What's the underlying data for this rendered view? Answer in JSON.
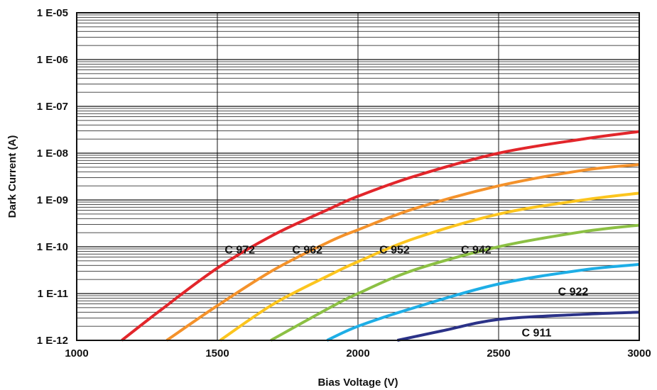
{
  "chart_data": {
    "type": "line",
    "xlabel": "Bias Voltage (V)",
    "ylabel": "Dark Current (A)",
    "xlim": [
      1000,
      3000
    ],
    "ylim": [
      1e-12,
      1e-05
    ],
    "y_scale": "log",
    "grid": true,
    "x_ticks": [
      1000,
      1500,
      2000,
      2500,
      3000
    ],
    "x_tick_labels": [
      "1000",
      "1500",
      "2000",
      "2500",
      "3000"
    ],
    "y_ticks": [
      1e-12,
      1e-11,
      1e-10,
      1e-09,
      1e-08,
      1e-07,
      1e-06,
      1e-05
    ],
    "y_tick_labels": [
      "1 E-12",
      "1 E-11",
      "1 E-10",
      "1 E-09",
      "1 E-08",
      "1 E-07",
      "1 E-06",
      "1 E-05"
    ],
    "series": [
      {
        "name": "C 972",
        "color": "#e2262b",
        "x": [
          1160,
          1300,
          1500,
          1700,
          1900,
          2000,
          2200,
          2500,
          2800,
          3000
        ],
        "y": [
          1e-12,
          4.5e-12,
          3.5e-11,
          1.8e-10,
          6.5e-10,
          1.2e-09,
          3.2e-09,
          1e-08,
          2e-08,
          2.9e-08
        ],
        "label_at": [
          1580,
          8.5e-11
        ]
      },
      {
        "name": "C 962",
        "color": "#f4922b",
        "x": [
          1320,
          1500,
          1700,
          1900,
          2000,
          2200,
          2500,
          2800,
          3000
        ],
        "y": [
          1e-12,
          5.5e-12,
          3.2e-11,
          1.3e-10,
          2.3e-10,
          6.5e-10,
          2e-09,
          4.3e-09,
          5.7e-09
        ],
        "label_at": [
          1820,
          8.5e-11
        ]
      },
      {
        "name": "C 952",
        "color": "#fcc51e",
        "x": [
          1510,
          1700,
          1900,
          2000,
          2200,
          2500,
          2800,
          3000
        ],
        "y": [
          1e-12,
          6e-12,
          2.5e-11,
          4.8e-11,
          1.5e-10,
          5e-10,
          1e-09,
          1.4e-09
        ],
        "label_at": [
          2130,
          8.5e-11
        ]
      },
      {
        "name": "C 942",
        "color": "#8cc044",
        "x": [
          1690,
          1900,
          2000,
          2200,
          2500,
          2800,
          3000
        ],
        "y": [
          1e-12,
          5e-12,
          1e-11,
          3.2e-11,
          1e-10,
          2.1e-10,
          2.9e-10
        ],
        "label_at": [
          2420,
          8.5e-11
        ]
      },
      {
        "name": "C 922",
        "color": "#1eaee6",
        "x": [
          1890,
          2000,
          2200,
          2500,
          2800,
          3000
        ],
        "y": [
          1e-12,
          2e-12,
          5e-12,
          1.6e-11,
          3.2e-11,
          4.2e-11
        ],
        "label_at": [
          2765,
          1.1e-11
        ]
      },
      {
        "name": "C 911",
        "color": "#2b3288",
        "x": [
          2140,
          2300,
          2500,
          2800,
          3000
        ],
        "y": [
          1e-12,
          1.6e-12,
          2.8e-12,
          3.6e-12,
          4e-12
        ],
        "label_at": [
          2635,
          1.45e-12
        ]
      }
    ]
  }
}
